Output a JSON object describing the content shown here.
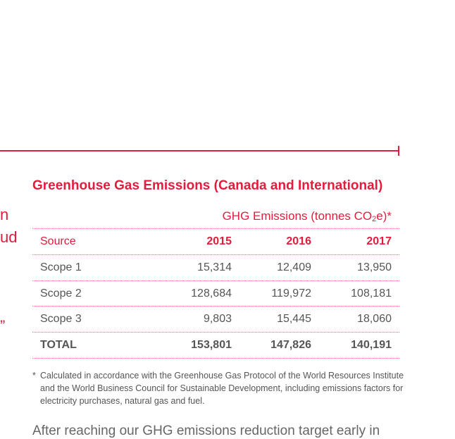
{
  "left_fragments": [
    "n",
    "ud",
    "”"
  ],
  "table": {
    "title": "Greenhouse Gas Emissions (Canada and International)",
    "units_label_prefix": "GHG Emissions (tonnes CO",
    "units_label_sub": "2",
    "units_label_suffix": "e)*",
    "header": {
      "source": "Source",
      "years": [
        "2015",
        "2016",
        "2017"
      ]
    },
    "rows": [
      {
        "source": "Scope 1",
        "values": [
          "15,314",
          "12,409",
          "13,950"
        ]
      },
      {
        "source": "Scope 2",
        "values": [
          "128,684",
          "119,972",
          "108,181"
        ]
      },
      {
        "source": "Scope 3",
        "values": [
          "9,803",
          "15,445",
          "18,060"
        ]
      }
    ],
    "total": {
      "source": "TOTAL",
      "values": [
        "153,801",
        "147,826",
        "140,191"
      ]
    }
  },
  "footnote": {
    "marker": "*",
    "text": "Calculated in accordance with the Greenhouse Gas Protocol of the World Resources Institute and the World Business Council for Sustainable Development, including emissions factors for electricity purchases, natural gas and fuel."
  },
  "body_fragment": "After reaching our GHG emissions reduction target early in",
  "colors": {
    "accent": "#e31b3c",
    "text": "#555555"
  }
}
